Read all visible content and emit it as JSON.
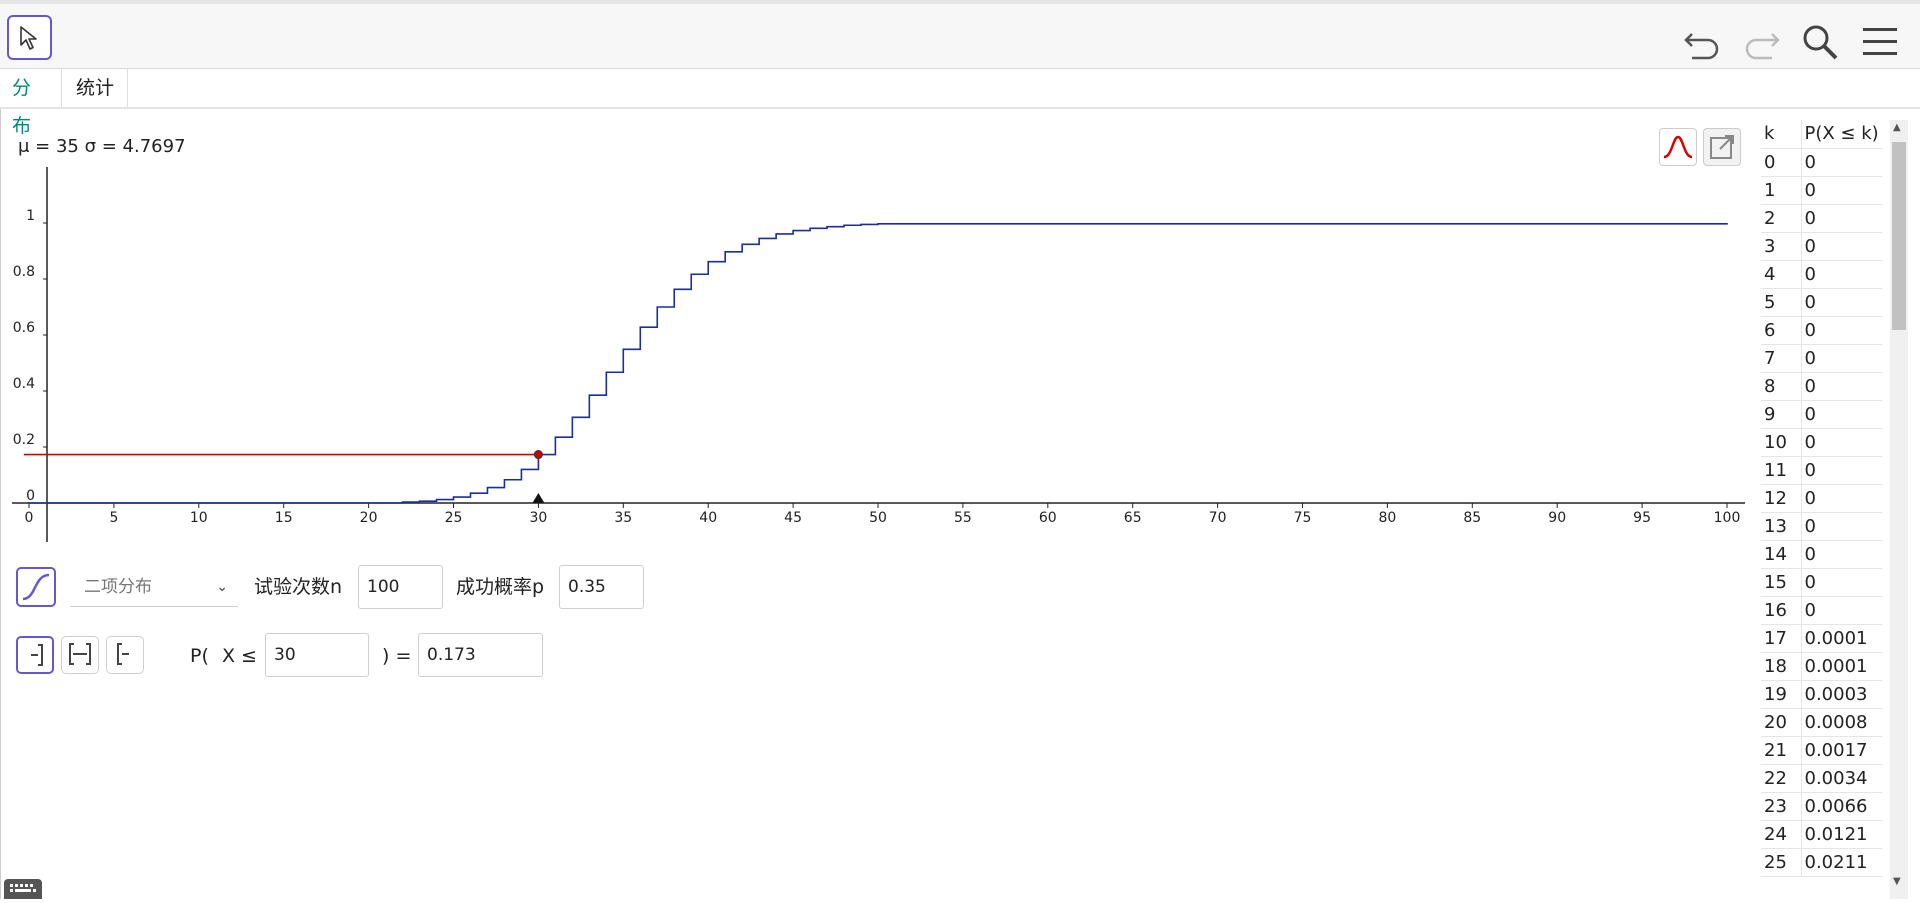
{
  "tabs": [
    {
      "label": "分布"
    },
    {
      "label": "统计"
    }
  ],
  "stats_label": "μ = 35 σ = 4.7697",
  "distribution": {
    "selected": "二项分布",
    "param1_label": "试验次数n",
    "param1_value": "100",
    "param2_label": "成功概率p",
    "param2_value": "0.35"
  },
  "probability": {
    "prefix": "P(",
    "variable": "X ≤",
    "bound_value": "30",
    "suffix": ") =",
    "result": "0.173"
  },
  "table": {
    "headers": [
      "k",
      "P(X ≤ k)"
    ],
    "rows": [
      [
        "0",
        "0"
      ],
      [
        "1",
        "0"
      ],
      [
        "2",
        "0"
      ],
      [
        "3",
        "0"
      ],
      [
        "4",
        "0"
      ],
      [
        "5",
        "0"
      ],
      [
        "6",
        "0"
      ],
      [
        "7",
        "0"
      ],
      [
        "8",
        "0"
      ],
      [
        "9",
        "0"
      ],
      [
        "10",
        "0"
      ],
      [
        "11",
        "0"
      ],
      [
        "12",
        "0"
      ],
      [
        "13",
        "0"
      ],
      [
        "14",
        "0"
      ],
      [
        "15",
        "0"
      ],
      [
        "16",
        "0"
      ],
      [
        "17",
        "0.0001"
      ],
      [
        "18",
        "0.0001"
      ],
      [
        "19",
        "0.0003"
      ],
      [
        "20",
        "0.0008"
      ],
      [
        "21",
        "0.0017"
      ],
      [
        "22",
        "0.0034"
      ],
      [
        "23",
        "0.0066"
      ],
      [
        "24",
        "0.0121"
      ],
      [
        "25",
        "0.0211"
      ]
    ]
  },
  "chart_data": {
    "type": "line",
    "step": true,
    "x_ticks": [
      0,
      5,
      10,
      15,
      20,
      25,
      30,
      35,
      40,
      45,
      50,
      55,
      60,
      65,
      70,
      75,
      80,
      85,
      90,
      95,
      100
    ],
    "y_ticks": [
      0,
      0.2,
      0.4,
      0.6,
      0.8,
      1
    ],
    "xlim": [
      0,
      100
    ],
    "ylim": [
      0,
      1
    ],
    "series": [
      {
        "x": [
          0,
          22,
          23,
          24,
          25,
          26,
          27,
          28,
          29,
          30,
          31,
          32,
          33,
          34,
          35,
          36,
          37,
          38,
          39,
          40,
          41,
          42,
          43,
          44,
          45,
          46,
          47,
          48,
          49,
          50,
          100
        ],
        "y": [
          0,
          0.0034,
          0.0066,
          0.0121,
          0.0211,
          0.035,
          0.055,
          0.083,
          0.12,
          0.173,
          0.235,
          0.306,
          0.385,
          0.467,
          0.549,
          0.628,
          0.7,
          0.763,
          0.817,
          0.862,
          0.897,
          0.924,
          0.945,
          0.961,
          0.973,
          0.981,
          0.987,
          0.992,
          0.995,
          0.997,
          1
        ],
        "color": "#1a2e9c"
      }
    ],
    "marker": {
      "x": 30,
      "y": 0.173,
      "color": "#cc0000"
    }
  },
  "colors": {
    "accent": "#6557d2",
    "tab_active": "#00897b",
    "curve": "#1a2e9c",
    "highlight": "#cc0000"
  }
}
